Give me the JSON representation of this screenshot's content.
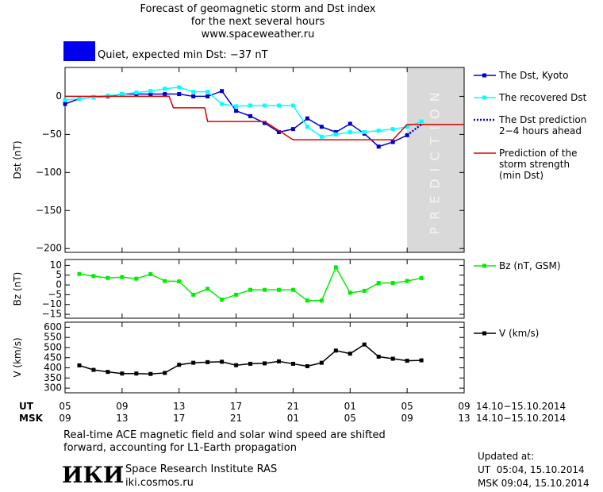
{
  "header": {
    "title": "Forecast of geomagnetic storm and Dst index",
    "subtitle": "for the next several hours",
    "url": "www.spaceweather.ru"
  },
  "status": {
    "label": "Quiet, expected min Dst: −37 nT",
    "color": "#0000ee"
  },
  "chart_data": [
    {
      "type": "line",
      "ylabel": "Dst (nT)",
      "ylim": [
        -205,
        38
      ],
      "yticks": [
        {
          "value": 0,
          "label": "0"
        },
        {
          "value": -50,
          "label": "−50"
        },
        {
          "value": -100,
          "label": "−100"
        },
        {
          "value": -150,
          "label": "−150"
        },
        {
          "value": -200,
          "label": "−200"
        }
      ],
      "prediction_band": {
        "x": [
          24,
          28
        ],
        "label": "PREDICTION"
      },
      "series": [
        {
          "name": "The Dst, Kyoto",
          "color": "#0000cc",
          "marker": "square",
          "x": [
            0,
            1,
            2,
            3,
            4,
            5,
            6,
            7,
            8,
            9,
            10,
            11,
            12,
            13,
            14,
            15,
            16,
            17,
            18,
            19,
            20,
            21,
            22,
            23,
            24
          ],
          "values": [
            -10,
            -3,
            -1,
            0,
            3,
            3,
            3,
            3,
            3,
            0,
            0,
            7,
            -19,
            -26,
            -35,
            -47,
            -43,
            -29,
            -40,
            -47,
            -36,
            -49,
            -66,
            -60,
            -51
          ]
        },
        {
          "name": "The recovered Dst",
          "color": "#00ffff",
          "marker": "square",
          "x": [
            0,
            1,
            2,
            3,
            4,
            5,
            6,
            7,
            8,
            9,
            10,
            11,
            12,
            13,
            14,
            15,
            16,
            17,
            18,
            19,
            20,
            21,
            22,
            23,
            24,
            25
          ],
          "values": [
            -5,
            -3,
            -1,
            1,
            3,
            5,
            7,
            10,
            12,
            6,
            6,
            -10,
            -13,
            -12,
            -12,
            -12,
            -12,
            -40,
            -53,
            -50,
            -47,
            -47,
            -45,
            -43,
            -40,
            -33
          ]
        },
        {
          "name": "The Dst prediction\n2−4 hours ahead",
          "color": "#0000cc",
          "dash": "dotted",
          "x": [
            24,
            25
          ],
          "values": [
            -51,
            -37
          ]
        },
        {
          "name": "Prediction of the\nstorm strength\n(min Dst)",
          "color": "#dd0000",
          "x": [
            0,
            7.3,
            7.6,
            9.8,
            10,
            14,
            16,
            23,
            24,
            28
          ],
          "values": [
            0,
            0,
            -15,
            -15,
            -33,
            -33,
            -57,
            -57,
            -37,
            -37
          ]
        }
      ]
    },
    {
      "type": "line",
      "ylabel": "Bz (nT)",
      "ylim": [
        -17,
        13
      ],
      "yticks": [
        {
          "value": 10,
          "label": "10"
        },
        {
          "value": 5,
          "label": "5"
        },
        {
          "value": 0,
          "label": "0"
        },
        {
          "value": -5,
          "label": "−5"
        },
        {
          "value": -10,
          "label": "−10"
        },
        {
          "value": -15,
          "label": "−15"
        }
      ],
      "series": [
        {
          "name": "Bz (nT, GSM)",
          "color": "#00ee00",
          "marker": "square",
          "x": [
            1,
            2,
            3,
            4,
            5,
            6,
            7,
            8,
            9,
            10,
            11,
            12,
            13,
            14,
            15,
            16,
            17,
            18,
            19,
            20,
            21,
            22,
            23,
            24,
            25
          ],
          "values": [
            5.6,
            4.5,
            3.6,
            4,
            3.2,
            5.5,
            2,
            1.8,
            -5,
            -2,
            -7.5,
            -5,
            -2.5,
            -2.5,
            -2.5,
            -2.5,
            -8,
            -8,
            9,
            -4,
            -3,
            1,
            1,
            2,
            3.5
          ]
        }
      ]
    },
    {
      "type": "line",
      "ylabel": "V (km/s)",
      "ylim": [
        277,
        625
      ],
      "yticks": [
        300,
        350,
        400,
        450,
        500,
        550,
        600
      ],
      "series": [
        {
          "name": "V (km/s)",
          "color": "#000000",
          "marker": "square",
          "x": [
            1,
            2,
            3,
            4,
            5,
            6,
            7,
            8,
            9,
            10,
            11,
            12,
            13,
            14,
            15,
            16,
            17,
            18,
            19,
            20,
            21,
            22,
            23,
            24,
            25
          ],
          "values": [
            412,
            390,
            380,
            372,
            372,
            370,
            375,
            415,
            425,
            428,
            430,
            413,
            420,
            422,
            432,
            420,
            408,
            425,
            485,
            470,
            515,
            455,
            445,
            435,
            437
          ]
        }
      ]
    }
  ],
  "time_axis": {
    "xlim": [
      0,
      28
    ],
    "rows": [
      {
        "label": "UT",
        "ticks": [
          {
            "value": 0,
            "label": "05"
          },
          {
            "value": 4,
            "label": "09"
          },
          {
            "value": 8,
            "label": "13"
          },
          {
            "value": 12,
            "label": "17"
          },
          {
            "value": 16,
            "label": "21"
          },
          {
            "value": 20,
            "label": "01"
          },
          {
            "value": 24,
            "label": "05"
          },
          {
            "value": 28,
            "label": "09"
          }
        ],
        "range": "14.10−15.10.2014"
      },
      {
        "label": "MSK",
        "ticks": [
          {
            "value": 0,
            "label": "09"
          },
          {
            "value": 4,
            "label": "13"
          },
          {
            "value": 8,
            "label": "17"
          },
          {
            "value": 12,
            "label": "21"
          },
          {
            "value": 16,
            "label": "01"
          },
          {
            "value": 20,
            "label": "05"
          },
          {
            "value": 24,
            "label": "09"
          },
          {
            "value": 28,
            "label": "13"
          }
        ],
        "range": "14.10−15.10.2014"
      }
    ]
  },
  "note": "Real-time ACE magnetic field and solar wind speed are shifted\nforward, accounting for L1-Earth propagation",
  "footer": {
    "logo": "ИКИ",
    "org": "Space Research Institute RAS",
    "site": "iki.cosmos.ru",
    "updated": "Updated at:",
    "ut": "UT  05:04, 15.10.2014",
    "msk": "MSK 09:04, 15.10.2014"
  }
}
